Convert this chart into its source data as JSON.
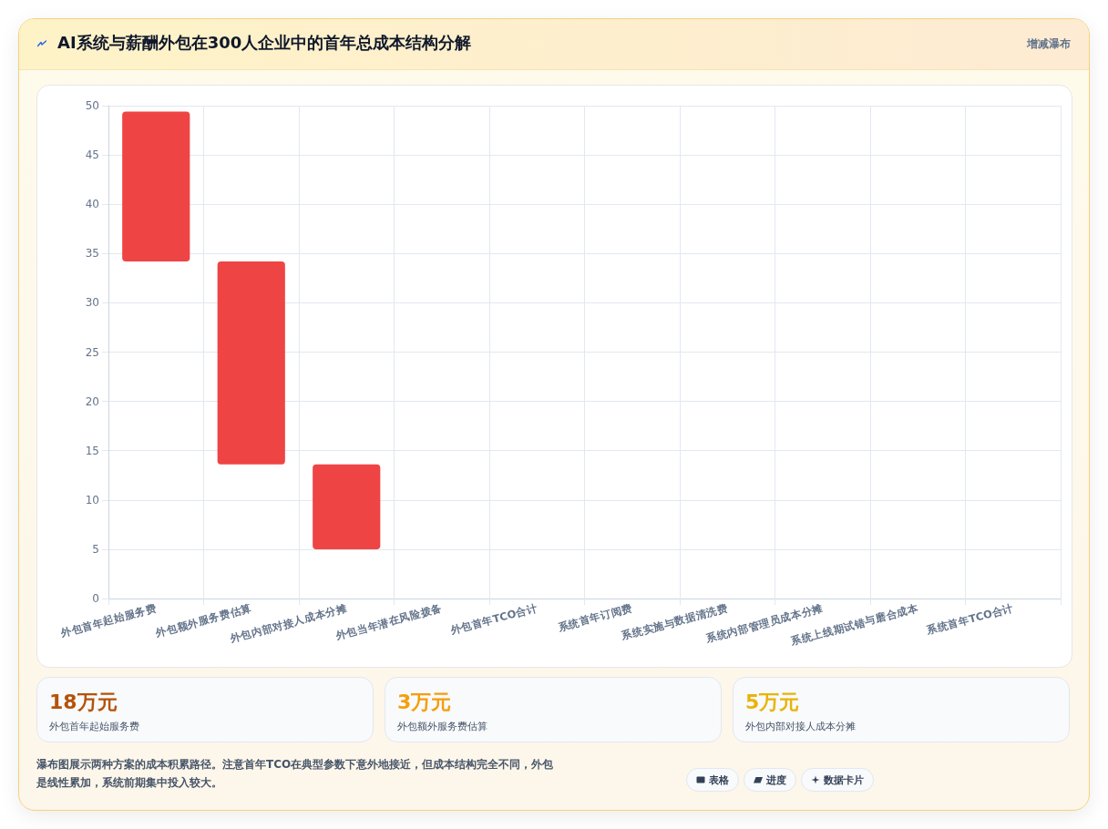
{
  "chart_data": {
    "type": "bar",
    "title": "AI系统与薪酬外包在300人企业中的首年总成本结构分解",
    "subtitle": "增减瀑布",
    "categories": [
      "外包首年起始服务费",
      "外包额外服务费估算",
      "外包内部对接人成本分摊",
      "外包当年潜在风险拨备",
      "外包首年TCO合计",
      "系统首年订阅费",
      "系统实施与数据清洗费",
      "系统内部管理员成本分摊",
      "系统上线期试错与磨合成本",
      "系统首年TCO合计"
    ],
    "values": [
      15.2,
      20.6,
      8.6,
      null,
      null,
      null,
      null,
      null,
      null,
      null
    ],
    "base": [
      34.2,
      13.6,
      5,
      null,
      null,
      null,
      null,
      null,
      null,
      null
    ],
    "color": "#ef4444",
    "ylim": [
      0,
      50
    ],
    "yticks": [
      0,
      5,
      10,
      15,
      20,
      25,
      30,
      35,
      40,
      45,
      50
    ],
    "grid": true,
    "annotations": [
      "18万元",
      "外包首年起始服务费",
      "3万元",
      "外包额外服务费估算",
      "5万元",
      "外包内部对接人成本分摊",
      "瀑布图展示两种方案的成本积累路径。注意首年TCO在典型参数下意外地接近，但成本结构完全不同，外包是线性累加，系统前期集中投入较大。",
      "表格",
      "进度",
      "数据卡片"
    ]
  }
}
